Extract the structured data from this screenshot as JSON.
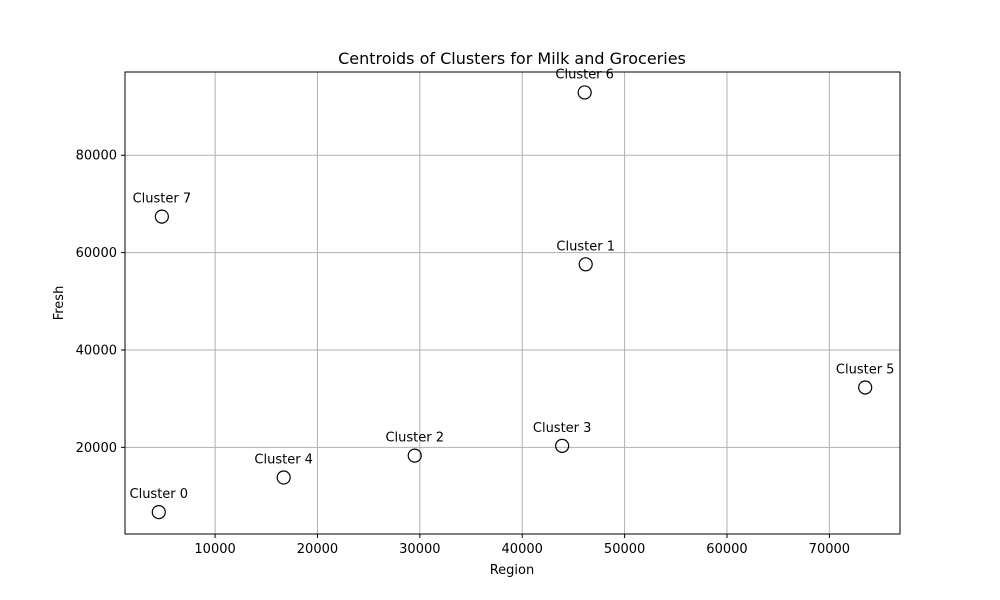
{
  "chart_data": {
    "type": "scatter",
    "title": "Centroids of Clusters for Milk and Groceries",
    "xlabel": "Region",
    "ylabel": "Fresh",
    "xlim": [
      1200,
      76900
    ],
    "ylim": [
      2200,
      97100
    ],
    "xticks": [
      10000,
      20000,
      30000,
      40000,
      50000,
      60000,
      70000
    ],
    "yticks": [
      20000,
      40000,
      60000,
      80000
    ],
    "grid": true,
    "marker": "open-circle",
    "points": [
      {
        "label": "Cluster 0",
        "x": 4500,
        "y": 6700
      },
      {
        "label": "Cluster 1",
        "x": 46200,
        "y": 57600
      },
      {
        "label": "Cluster 2",
        "x": 29500,
        "y": 18300
      },
      {
        "label": "Cluster 3",
        "x": 43900,
        "y": 20300
      },
      {
        "label": "Cluster 4",
        "x": 16700,
        "y": 13800
      },
      {
        "label": "Cluster 5",
        "x": 73500,
        "y": 32300
      },
      {
        "label": "Cluster 6",
        "x": 46100,
        "y": 92900
      },
      {
        "label": "Cluster 7",
        "x": 4800,
        "y": 67400
      }
    ]
  }
}
